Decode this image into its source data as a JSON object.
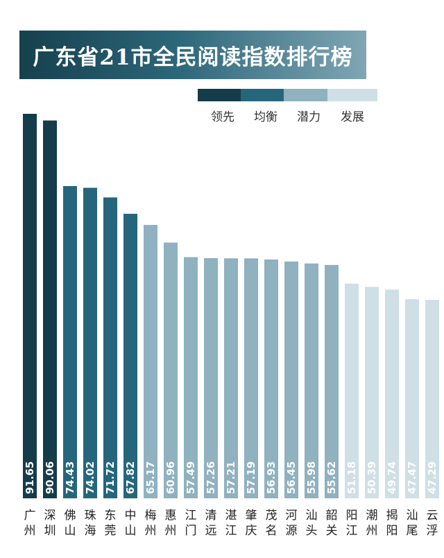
{
  "title": "广东省21市全民阅读指数排行榜",
  "colors": {
    "领先": "#143c4a",
    "均衡": "#25667c",
    "潜力": "#8fb1c0",
    "发展": "#cfdfe6"
  },
  "legend": [
    {
      "label": "领先",
      "color": "#143c4a"
    },
    {
      "label": "均衡",
      "color": "#25667c"
    },
    {
      "label": "潜力",
      "color": "#8fb1c0"
    },
    {
      "label": "发展",
      "color": "#cfdfe6"
    }
  ],
  "chart_data": {
    "type": "bar",
    "title": "广东省21市全民阅读指数排行榜",
    "categories": [
      "广州",
      "深圳",
      "佛山",
      "珠海",
      "东莞",
      "中山",
      "梅州",
      "惠州",
      "江门",
      "清远",
      "湛江",
      "肇庆",
      "茂名",
      "河源",
      "汕头",
      "韶关",
      "阳江",
      "潮州",
      "揭阳",
      "汕尾",
      "云浮"
    ],
    "values": [
      91.65,
      90.06,
      74.43,
      74.02,
      71.72,
      67.82,
      65.17,
      60.96,
      57.49,
      57.26,
      57.21,
      57.19,
      56.93,
      56.45,
      55.98,
      55.62,
      51.18,
      50.39,
      49.74,
      47.47,
      47.29
    ],
    "value_labels": [
      "91.65",
      "90.06",
      "74.43",
      "74.02",
      "71.72",
      "67.82",
      "65.17",
      "60.96",
      "57.49",
      "57.26",
      "57.21",
      "57.19",
      "56.93",
      "56.45",
      "55.98",
      "55.62",
      "51.18",
      "50.39",
      "49.74",
      "47.47",
      "47.29"
    ],
    "groups": [
      "领先",
      "领先",
      "均衡",
      "均衡",
      "均衡",
      "均衡",
      "潜力",
      "潜力",
      "潜力",
      "潜力",
      "潜力",
      "潜力",
      "潜力",
      "潜力",
      "潜力",
      "潜力",
      "发展",
      "发展",
      "发展",
      "发展",
      "发展"
    ],
    "legend_position": "top-right",
    "grid": false,
    "ylim": [
      0,
      100
    ]
  }
}
